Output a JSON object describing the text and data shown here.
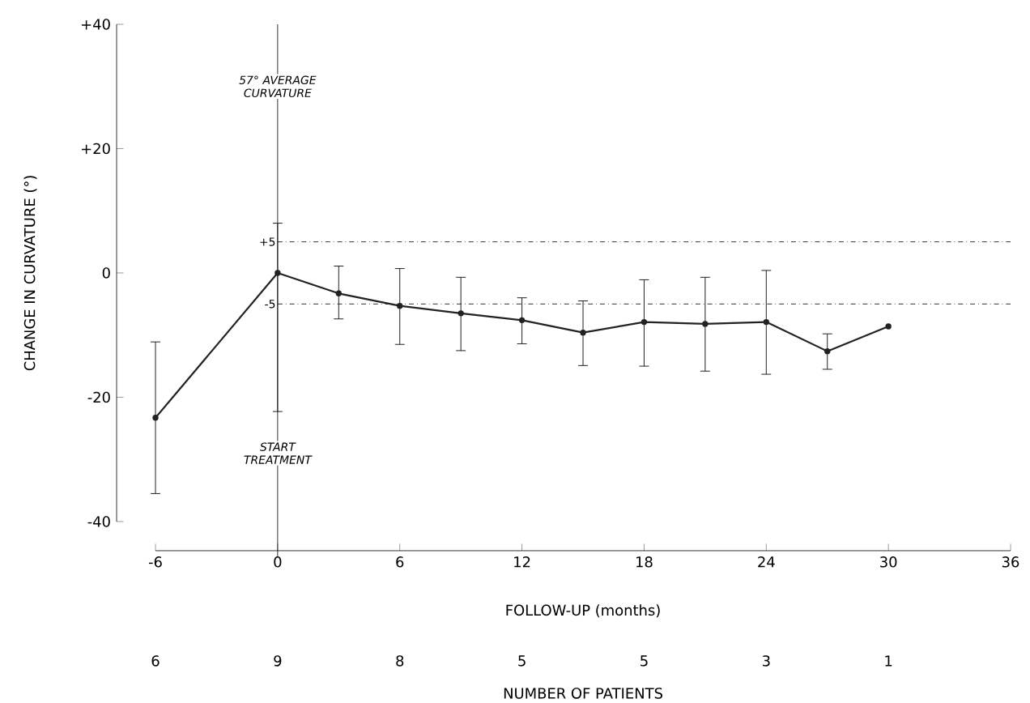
{
  "chart_data": {
    "type": "line",
    "xlabel": "FOLLOW-UP (months)",
    "ylabel": "CHANGE IN CURVATURE (°)",
    "x": [
      -6,
      0,
      3,
      6,
      9,
      12,
      15,
      18,
      21,
      24,
      27,
      30
    ],
    "series": [
      {
        "color": "#222222",
        "values": [
          -23.3,
          0,
          -3.3,
          -5.3,
          -6.5,
          -7.6,
          -9.6,
          -7.9,
          -8.2,
          -7.9,
          -12.6,
          -8.6
        ],
        "errors": [
          [
            -35.5,
            -11.1
          ],
          [
            -22.3,
            8
          ],
          [
            -7.4,
            1.1
          ],
          [
            -11.5,
            0.7
          ],
          [
            -12.5,
            -0.7
          ],
          [
            -11.4,
            -4.0
          ],
          [
            -14.9,
            -4.5
          ],
          [
            -15.0,
            -1.1
          ],
          [
            -15.8,
            -0.7
          ],
          [
            -16.3,
            0.4
          ],
          [
            -15.5,
            -9.8
          ],
          null
        ]
      }
    ],
    "xlim": [
      -6,
      36
    ],
    "xticks": [
      -6,
      {
        "value": 0,
        "label": "0"
      },
      6,
      12,
      18,
      24,
      30,
      36
    ],
    "ylim": [
      -40,
      40
    ],
    "yticks": [
      {
        "value": -40,
        "label": "-40"
      },
      {
        "value": -20,
        "label": "-20"
      },
      {
        "value": 0,
        "label": "0"
      },
      {
        "value": 20,
        "label": "+20"
      },
      {
        "value": 40,
        "label": "+40"
      }
    ],
    "ref_lines": [
      {
        "axis": "x",
        "value": 0,
        "line_style": "solid"
      },
      {
        "axis": "y",
        "value": 5,
        "label": "+5",
        "line_style": "dashdot"
      },
      {
        "axis": "y",
        "value": -5,
        "label": "-5",
        "line_style": "dashdot"
      }
    ],
    "annotations": [
      {
        "text": "57° AVERAGE CURVATURE",
        "x": 0,
        "y": 30
      },
      {
        "text": "START TREATMENT",
        "x": 0,
        "y": -29
      },
      "6",
      "9",
      "8",
      "5",
      "5",
      "3",
      "1",
      "NUMBER OF PATIENTS"
    ],
    "marker": "circle",
    "line_style": "solid"
  }
}
